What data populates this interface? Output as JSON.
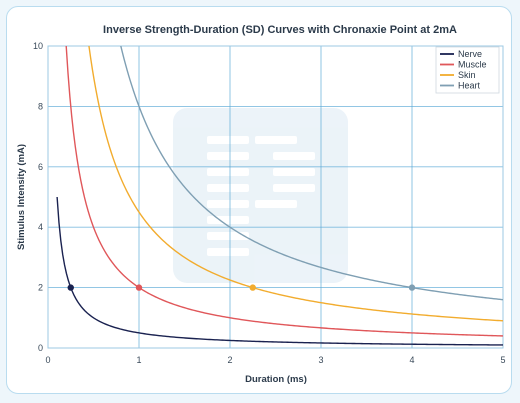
{
  "chart_data": {
    "type": "line",
    "title": "Inverse Strength-Duration (SD) Curves with Chronaxie Point at 2mA",
    "xlabel": "Duration (ms)",
    "ylabel": "Stimulus Intensity (mA)",
    "xlim": [
      0,
      5
    ],
    "ylim": [
      0,
      10
    ],
    "xticks": [
      "0",
      "1",
      "2",
      "3",
      "4",
      "5"
    ],
    "yticks": [
      "0",
      "2",
      "4",
      "6",
      "8",
      "10"
    ],
    "grid": true,
    "legend_position": "top-right",
    "series": [
      {
        "name": "Nerve",
        "color": "#1a2250",
        "x": [
          0.1,
          0.15,
          0.2,
          0.25,
          0.3,
          0.4,
          0.5,
          0.75,
          1.0,
          1.5,
          2.0,
          3.0,
          4.0,
          5.0
        ],
        "y": [
          5.0,
          3.33,
          2.5,
          2.0,
          1.67,
          1.25,
          1.0,
          0.67,
          0.5,
          0.33,
          0.25,
          0.17,
          0.125,
          0.1
        ],
        "chronaxie": {
          "x": 0.25,
          "y": 2.0
        }
      },
      {
        "name": "Muscle",
        "color": "#e0575a",
        "x": [
          0.2,
          0.25,
          0.3,
          0.4,
          0.5,
          0.75,
          1.0,
          1.5,
          2.0,
          2.5,
          3.0,
          4.0,
          5.0
        ],
        "y": [
          10.0,
          8.0,
          6.67,
          5.0,
          4.0,
          2.67,
          2.0,
          1.33,
          1.0,
          0.8,
          0.67,
          0.5,
          0.4
        ],
        "chronaxie": {
          "x": 1.0,
          "y": 2.0
        }
      },
      {
        "name": "Skin",
        "color": "#f2ac2e",
        "x": [
          0.45,
          0.5,
          0.6,
          0.75,
          1.0,
          1.25,
          1.5,
          2.0,
          2.25,
          2.5,
          3.0,
          3.5,
          4.0,
          4.5,
          5.0
        ],
        "y": [
          10.0,
          9.0,
          7.5,
          6.0,
          4.5,
          3.6,
          3.0,
          2.25,
          2.0,
          1.8,
          1.5,
          1.29,
          1.125,
          1.0,
          0.9
        ],
        "chronaxie": {
          "x": 2.25,
          "y": 2.0
        }
      },
      {
        "name": "Heart",
        "color": "#7f9fb3",
        "x": [
          0.8,
          1.0,
          1.25,
          1.5,
          2.0,
          2.5,
          3.0,
          3.5,
          4.0,
          4.5,
          5.0
        ],
        "y": [
          10.0,
          8.0,
          6.4,
          5.33,
          4.0,
          3.2,
          2.67,
          2.29,
          2.0,
          1.78,
          1.6
        ],
        "chronaxie": {
          "x": 4.0,
          "y": 2.0
        }
      }
    ]
  }
}
